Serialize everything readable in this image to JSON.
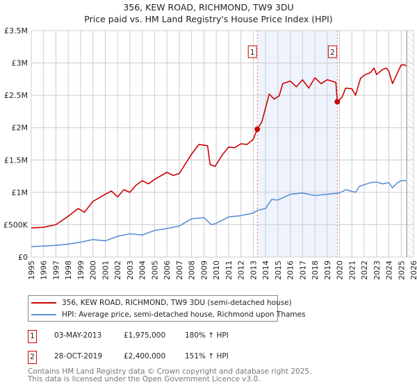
{
  "chart_data": {
    "type": "line",
    "title": "356, KEW ROAD, RICHMOND, TW9 3DU",
    "subtitle": "Price paid vs. HM Land Registry's House Price Index (HPI)",
    "xlabel": "",
    "ylabel": "",
    "xlim": [
      1995,
      2026
    ],
    "ylim": [
      0,
      3500000
    ],
    "x_ticks": [
      "1995",
      "1996",
      "1997",
      "1998",
      "1999",
      "2000",
      "2001",
      "2002",
      "2003",
      "2004",
      "2005",
      "2006",
      "2007",
      "2008",
      "2009",
      "2010",
      "2011",
      "2012",
      "2013",
      "2014",
      "2015",
      "2016",
      "2017",
      "2018",
      "2019",
      "2020",
      "2021",
      "2022",
      "2023",
      "2024",
      "2025",
      "2026"
    ],
    "y_ticks": [
      {
        "v": 0,
        "label": "£0"
      },
      {
        "v": 500000,
        "label": "£500K"
      },
      {
        "v": 1000000,
        "label": "£1M"
      },
      {
        "v": 1500000,
        "label": "£1.5M"
      },
      {
        "v": 2000000,
        "label": "£2M"
      },
      {
        "v": 2500000,
        "label": "£2.5M"
      },
      {
        "v": 3000000,
        "label": "£3M"
      },
      {
        "v": 3500000,
        "label": "£3.5M"
      }
    ],
    "grid": true,
    "shaded_range": [
      2013.33,
      2019.82
    ],
    "future_hatch_from": 2025.45,
    "series": [
      {
        "name": "356, KEW ROAD, RICHMOND, TW9 3DU (semi-detached house)",
        "color": "#cc0000",
        "x": [
          1995,
          1996,
          1997,
          1998,
          1998.8,
          1999.3,
          2000,
          2001,
          2001.5,
          2002,
          2002.5,
          2003,
          2003.5,
          2004,
          2004.5,
          2005,
          2006,
          2006.5,
          2007,
          2008,
          2008.6,
          2009.3,
          2009.5,
          2009.9,
          2010.5,
          2011,
          2011.5,
          2012,
          2012.5,
          2013,
          2013.33,
          2013.7,
          2014.3,
          2014.7,
          2015.1,
          2015.4,
          2016,
          2016.5,
          2017,
          2017.5,
          2018,
          2018.5,
          2019,
          2019.7,
          2019.82,
          2020.2,
          2020.5,
          2021,
          2021.3,
          2021.7,
          2022,
          2022.5,
          2022.8,
          2023,
          2023.5,
          2023.8,
          2024,
          2024.3,
          2024.6,
          2025,
          2025.3,
          2025.4
        ],
        "y": [
          450000,
          460000,
          500000,
          630000,
          750000,
          690000,
          860000,
          970000,
          1020000,
          930000,
          1040000,
          1000000,
          1110000,
          1180000,
          1130000,
          1200000,
          1310000,
          1260000,
          1290000,
          1590000,
          1740000,
          1720000,
          1430000,
          1400000,
          1580000,
          1700000,
          1690000,
          1750000,
          1740000,
          1820000,
          1975000,
          2090000,
          2520000,
          2440000,
          2490000,
          2680000,
          2720000,
          2630000,
          2740000,
          2610000,
          2770000,
          2680000,
          2740000,
          2700000,
          2400000,
          2470000,
          2610000,
          2600000,
          2500000,
          2760000,
          2810000,
          2850000,
          2920000,
          2820000,
          2900000,
          2920000,
          2870000,
          2680000,
          2810000,
          2970000,
          2970000,
          2950000
        ]
      },
      {
        "name": "HPI: Average price, semi-detached house, Richmond upon Thames",
        "color": "#5b8fd6",
        "x": [
          1995,
          1997,
          1998,
          1999,
          2000,
          2001,
          2002,
          2003,
          2004,
          2005,
          2006,
          2007,
          2008,
          2009,
          2009.6,
          2010,
          2011,
          2012,
          2013,
          2013.33,
          2014,
          2014.5,
          2015,
          2016,
          2017,
          2018,
          2019,
          2020,
          2020.5,
          2021.3,
          2021.6,
          2022.5,
          2023,
          2023.5,
          2024,
          2024.3,
          2024.7,
          2025,
          2025.4
        ],
        "y": [
          160000,
          180000,
          200000,
          230000,
          270000,
          250000,
          320000,
          360000,
          340000,
          410000,
          440000,
          480000,
          590000,
          610000,
          500000,
          520000,
          620000,
          640000,
          680000,
          720000,
          750000,
          890000,
          880000,
          970000,
          990000,
          950000,
          970000,
          990000,
          1040000,
          1000000,
          1090000,
          1150000,
          1160000,
          1130000,
          1150000,
          1070000,
          1150000,
          1180000,
          1180000
        ]
      }
    ],
    "annotations": [
      {
        "label": "1",
        "x": 2013.33,
        "y": 1975000,
        "date": "03-MAY-2013",
        "price": "£1,975,000",
        "hpi": "180% ↑ HPI"
      },
      {
        "label": "2",
        "x": 2019.82,
        "y": 2400000,
        "date": "28-OCT-2019",
        "price": "£2,400,000",
        "hpi": "151% ↑ HPI"
      }
    ]
  },
  "legend": {
    "red": "356, KEW ROAD, RICHMOND, TW9 3DU (semi-detached house)",
    "blue": "HPI: Average price, semi-detached house, Richmond upon Thames"
  },
  "footer": {
    "line1": "Contains HM Land Registry data © Crown copyright and database right 2025.",
    "line2": "This data is licensed under the Open Government Licence v3.0."
  }
}
